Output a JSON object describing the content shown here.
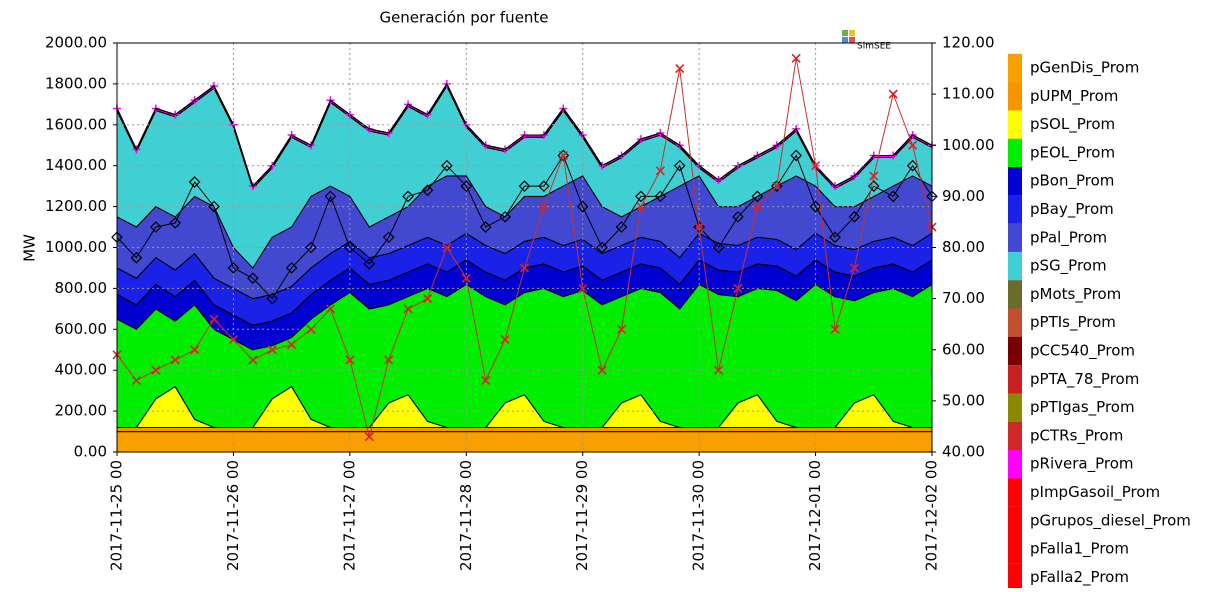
{
  "chart_data": {
    "type": "stacked-area",
    "title": "Generación por fuente",
    "ylabel": "MW",
    "watermark": "SimSEE",
    "xlim": [
      0,
      168
    ],
    "xticks": [
      {
        "value": 0,
        "label": "2017-11-25 00"
      },
      {
        "value": 24,
        "label": "2017-11-26 00"
      },
      {
        "value": 48,
        "label": "2017-11-27 00"
      },
      {
        "value": 72,
        "label": "2017-11-28 00"
      },
      {
        "value": 96,
        "label": "2017-11-29 00"
      },
      {
        "value": 120,
        "label": "2017-11-30 00"
      },
      {
        "value": 144,
        "label": "2017-12-01 00"
      },
      {
        "value": 168,
        "label": "2017-12-02 00"
      }
    ],
    "ylim": [
      0,
      2000
    ],
    "yticks": [
      {
        "value": 0,
        "label": "0.00"
      },
      {
        "value": 200,
        "label": "200.00"
      },
      {
        "value": 400,
        "label": "400.00"
      },
      {
        "value": 600,
        "label": "600.00"
      },
      {
        "value": 800,
        "label": "800.00"
      },
      {
        "value": 1000,
        "label": "1000.00"
      },
      {
        "value": 1200,
        "label": "1200.00"
      },
      {
        "value": 1400,
        "label": "1400.00"
      },
      {
        "value": 1600,
        "label": "1600.00"
      },
      {
        "value": 1800,
        "label": "1800.00"
      },
      {
        "value": 2000,
        "label": "2000.00"
      }
    ],
    "y2lim": [
      40,
      120
    ],
    "y2ticks": [
      {
        "value": 40,
        "label": "40.00"
      },
      {
        "value": 50,
        "label": "50.00"
      },
      {
        "value": 60,
        "label": "60.00"
      },
      {
        "value": 70,
        "label": "70.00"
      },
      {
        "value": 80,
        "label": "80.00"
      },
      {
        "value": 90,
        "label": "90.00"
      },
      {
        "value": 100,
        "label": "100.00"
      },
      {
        "value": 110,
        "label": "110.00"
      },
      {
        "value": 120,
        "label": "120.00"
      }
    ],
    "grid": true,
    "x": [
      0,
      4,
      8,
      12,
      16,
      20,
      24,
      28,
      32,
      36,
      40,
      44,
      48,
      52,
      56,
      60,
      64,
      68,
      72,
      76,
      80,
      84,
      88,
      92,
      96,
      100,
      104,
      108,
      112,
      116,
      120,
      124,
      128,
      132,
      136,
      140,
      144,
      148,
      152,
      156,
      160,
      164,
      168
    ],
    "series": [
      {
        "name": "pGenDis_Prom",
        "color": "#f7a000",
        "values": [
          100,
          100,
          100,
          100,
          100,
          100,
          100,
          100,
          100,
          100,
          100,
          100,
          100,
          100,
          100,
          100,
          100,
          100,
          100,
          100,
          100,
          100,
          100,
          100,
          100,
          100,
          100,
          100,
          100,
          100,
          100,
          100,
          100,
          100,
          100,
          100,
          100,
          100,
          100,
          100,
          100,
          100,
          100
        ]
      },
      {
        "name": "pUPM_Prom",
        "color": "#f59500",
        "values": [
          20,
          20,
          20,
          20,
          20,
          20,
          20,
          20,
          20,
          20,
          20,
          20,
          20,
          20,
          20,
          20,
          20,
          20,
          20,
          20,
          20,
          20,
          20,
          20,
          20,
          20,
          20,
          20,
          20,
          20,
          20,
          20,
          20,
          20,
          20,
          20,
          20,
          20,
          20,
          20,
          20,
          20,
          20
        ]
      },
      {
        "name": "pSOL_Prom",
        "color": "#ffff00",
        "values": [
          0,
          0,
          140,
          200,
          40,
          0,
          0,
          0,
          140,
          200,
          40,
          0,
          0,
          0,
          120,
          160,
          30,
          0,
          0,
          0,
          120,
          160,
          30,
          0,
          0,
          0,
          120,
          160,
          30,
          0,
          0,
          0,
          120,
          160,
          30,
          0,
          0,
          0,
          120,
          160,
          30,
          0,
          0
        ]
      },
      {
        "name": "pEOL_Prom",
        "color": "#00ee00",
        "values": [
          530,
          480,
          440,
          320,
          560,
          480,
          430,
          380,
          260,
          240,
          490,
          600,
          660,
          580,
          480,
          480,
          650,
          640,
          700,
          640,
          480,
          500,
          650,
          640,
          670,
          600,
          520,
          520,
          630,
          580,
          700,
          650,
          520,
          520,
          640,
          620,
          700,
          640,
          500,
          500,
          650,
          640,
          700
        ]
      },
      {
        "name": "pBon_Prom",
        "color": "#0000d0",
        "values": [
          120,
          120,
          120,
          120,
          120,
          120,
          120,
          120,
          120,
          120,
          120,
          120,
          120,
          120,
          120,
          120,
          120,
          120,
          120,
          120,
          120,
          120,
          120,
          120,
          120,
          120,
          120,
          120,
          120,
          120,
          120,
          120,
          120,
          120,
          120,
          120,
          120,
          120,
          120,
          120,
          120,
          120,
          120
        ]
      },
      {
        "name": "pBay_Prom",
        "color": "#1a22e8",
        "values": [
          130,
          130,
          130,
          130,
          130,
          130,
          130,
          130,
          130,
          130,
          130,
          130,
          130,
          130,
          130,
          130,
          130,
          130,
          130,
          130,
          130,
          130,
          130,
          130,
          130,
          130,
          130,
          130,
          130,
          130,
          130,
          130,
          130,
          130,
          130,
          130,
          130,
          130,
          130,
          130,
          130,
          130,
          130
        ]
      },
      {
        "name": "pPal_Prom",
        "color": "#4248d0",
        "values": [
          250,
          250,
          250,
          260,
          280,
          350,
          200,
          150,
          280,
          290,
          350,
          330,
          220,
          150,
          180,
          190,
          250,
          340,
          280,
          190,
          180,
          220,
          200,
          290,
          310,
          230,
          140,
          150,
          220,
          350,
          280,
          180,
          190,
          200,
          260,
          360,
          230,
          190,
          210,
          220,
          250,
          340,
          230
        ]
      },
      {
        "name": "pSG_Prom",
        "color": "#40d0d4",
        "values": [
          520,
          370,
          470,
          490,
          460,
          580,
          590,
          390,
          340,
          440,
          240,
          410,
          390,
          470,
          400,
          490,
          340,
          440,
          240,
          290,
          320,
          290,
          290,
          370,
          190,
          190,
          290,
          320,
          300,
          190,
          40,
          120,
          190,
          190,
          190,
          220,
          90,
          90,
          140,
          190,
          140,
          190,
          190
        ]
      },
      {
        "name": "pMots_Prom",
        "color": "#6b6b2e",
        "values": [
          0,
          0,
          0,
          0,
          0,
          0,
          0,
          0,
          0,
          0,
          0,
          0,
          0,
          0,
          0,
          0,
          0,
          0,
          0,
          0,
          0,
          0,
          0,
          0,
          0,
          0,
          0,
          0,
          0,
          0,
          0,
          0,
          0,
          0,
          0,
          0,
          0,
          0,
          0,
          0,
          0,
          0,
          0
        ]
      },
      {
        "name": "pPTIs_Prom",
        "color": "#c0502e",
        "values": [
          0,
          0,
          0,
          0,
          0,
          0,
          0,
          0,
          0,
          0,
          0,
          0,
          0,
          0,
          0,
          0,
          0,
          0,
          0,
          0,
          0,
          0,
          0,
          0,
          0,
          0,
          0,
          0,
          0,
          0,
          0,
          0,
          0,
          0,
          0,
          0,
          0,
          0,
          0,
          0,
          0,
          0,
          0
        ]
      },
      {
        "name": "pCC540_Prom",
        "color": "#7a0000",
        "values": [
          0,
          0,
          0,
          0,
          0,
          0,
          0,
          0,
          0,
          0,
          0,
          0,
          0,
          0,
          0,
          0,
          0,
          0,
          0,
          0,
          0,
          0,
          0,
          0,
          0,
          0,
          0,
          0,
          0,
          0,
          0,
          0,
          0,
          0,
          0,
          0,
          0,
          0,
          0,
          0,
          0,
          0,
          0
        ]
      },
      {
        "name": "pPTA_78_Prom",
        "color": "#c82020",
        "values": [
          0,
          0,
          0,
          0,
          0,
          0,
          0,
          0,
          0,
          0,
          0,
          0,
          0,
          0,
          0,
          0,
          0,
          0,
          0,
          0,
          0,
          0,
          0,
          0,
          0,
          0,
          0,
          0,
          0,
          0,
          0,
          0,
          0,
          0,
          0,
          0,
          0,
          0,
          0,
          0,
          0,
          0,
          0
        ]
      },
      {
        "name": "pPTIgas_Prom",
        "color": "#8a8a00",
        "values": [
          0,
          0,
          0,
          0,
          0,
          0,
          0,
          0,
          0,
          0,
          0,
          0,
          0,
          0,
          0,
          0,
          0,
          0,
          0,
          0,
          0,
          0,
          0,
          0,
          0,
          0,
          0,
          0,
          0,
          0,
          0,
          0,
          0,
          0,
          0,
          0,
          0,
          0,
          0,
          0,
          0,
          0,
          0
        ]
      },
      {
        "name": "pCTRs_Prom",
        "color": "#d02828",
        "values": [
          0,
          0,
          0,
          0,
          0,
          0,
          0,
          0,
          0,
          0,
          0,
          0,
          0,
          0,
          0,
          0,
          0,
          0,
          0,
          0,
          0,
          0,
          0,
          0,
          0,
          0,
          0,
          0,
          0,
          0,
          0,
          0,
          0,
          0,
          0,
          0,
          0,
          0,
          0,
          0,
          0,
          0,
          0
        ]
      },
      {
        "name": "pRivera_Prom",
        "color": "#ff00ff",
        "marker": "plus",
        "values": [
          10,
          10,
          10,
          10,
          10,
          10,
          10,
          10,
          10,
          10,
          10,
          10,
          10,
          10,
          10,
          10,
          10,
          10,
          10,
          10,
          10,
          10,
          10,
          10,
          10,
          10,
          10,
          10,
          10,
          10,
          10,
          10,
          10,
          10,
          10,
          10,
          10,
          10,
          10,
          10,
          10,
          10,
          10
        ]
      },
      {
        "name": "pImpGasoil_Prom",
        "color": "#ff0000",
        "values": [
          0,
          0,
          0,
          0,
          0,
          0,
          0,
          0,
          0,
          0,
          0,
          0,
          0,
          0,
          0,
          0,
          0,
          0,
          0,
          0,
          0,
          0,
          0,
          0,
          0,
          0,
          0,
          0,
          0,
          0,
          0,
          0,
          0,
          0,
          0,
          0,
          0,
          0,
          0,
          0,
          0,
          0,
          0
        ]
      },
      {
        "name": "pGrupos_diesel_Prom",
        "color": "#ff0000",
        "values": [
          0,
          0,
          0,
          0,
          0,
          0,
          0,
          0,
          0,
          0,
          0,
          0,
          0,
          0,
          0,
          0,
          0,
          0,
          0,
          0,
          0,
          0,
          0,
          0,
          0,
          0,
          0,
          0,
          0,
          0,
          0,
          0,
          0,
          0,
          0,
          0,
          0,
          0,
          0,
          0,
          0,
          0,
          0
        ]
      },
      {
        "name": "pFalla1_Prom",
        "color": "#ff0000",
        "values": [
          0,
          0,
          0,
          0,
          0,
          0,
          0,
          0,
          0,
          0,
          0,
          0,
          0,
          0,
          0,
          0,
          0,
          0,
          0,
          0,
          0,
          0,
          0,
          0,
          0,
          0,
          0,
          0,
          0,
          0,
          0,
          0,
          0,
          0,
          0,
          0,
          0,
          0,
          0,
          0,
          0,
          0,
          0
        ]
      },
      {
        "name": "pFalla2_Prom",
        "color": "#ff0000",
        "values": [
          0,
          0,
          0,
          0,
          0,
          0,
          0,
          0,
          0,
          0,
          0,
          0,
          0,
          0,
          0,
          0,
          0,
          0,
          0,
          0,
          0,
          0,
          0,
          0,
          0,
          0,
          0,
          0,
          0,
          0,
          0,
          0,
          0,
          0,
          0,
          0,
          0,
          0,
          0,
          0,
          0,
          0,
          0
        ]
      },
      {
        "mode": "line",
        "color": "#000000",
        "marker": "diamond",
        "values": [
          1050,
          950,
          1100,
          1120,
          1320,
          1200,
          900,
          850,
          750,
          900,
          1000,
          1250,
          1000,
          920,
          1050,
          1250,
          1280,
          1400,
          1300,
          1100,
          1150,
          1300,
          1300,
          1450,
          1200,
          1000,
          1100,
          1250,
          1250,
          1400,
          1100,
          1000,
          1150,
          1250,
          1300,
          1450,
          1200,
          1050,
          1150,
          1300,
          1250,
          1400,
          1250
        ]
      },
      {
        "mode": "line",
        "axis": "y2",
        "color": "#c83030",
        "marker": "cross",
        "values": [
          59,
          54,
          56,
          58,
          60,
          66,
          62,
          58,
          60,
          61,
          64,
          68,
          58,
          43,
          58,
          68,
          70,
          80,
          74,
          54,
          62,
          76,
          88,
          98,
          72,
          56,
          64,
          88,
          95,
          115,
          84,
          56,
          72,
          88,
          92,
          117,
          96,
          64,
          76,
          94,
          110,
          100,
          84
        ]
      }
    ]
  }
}
